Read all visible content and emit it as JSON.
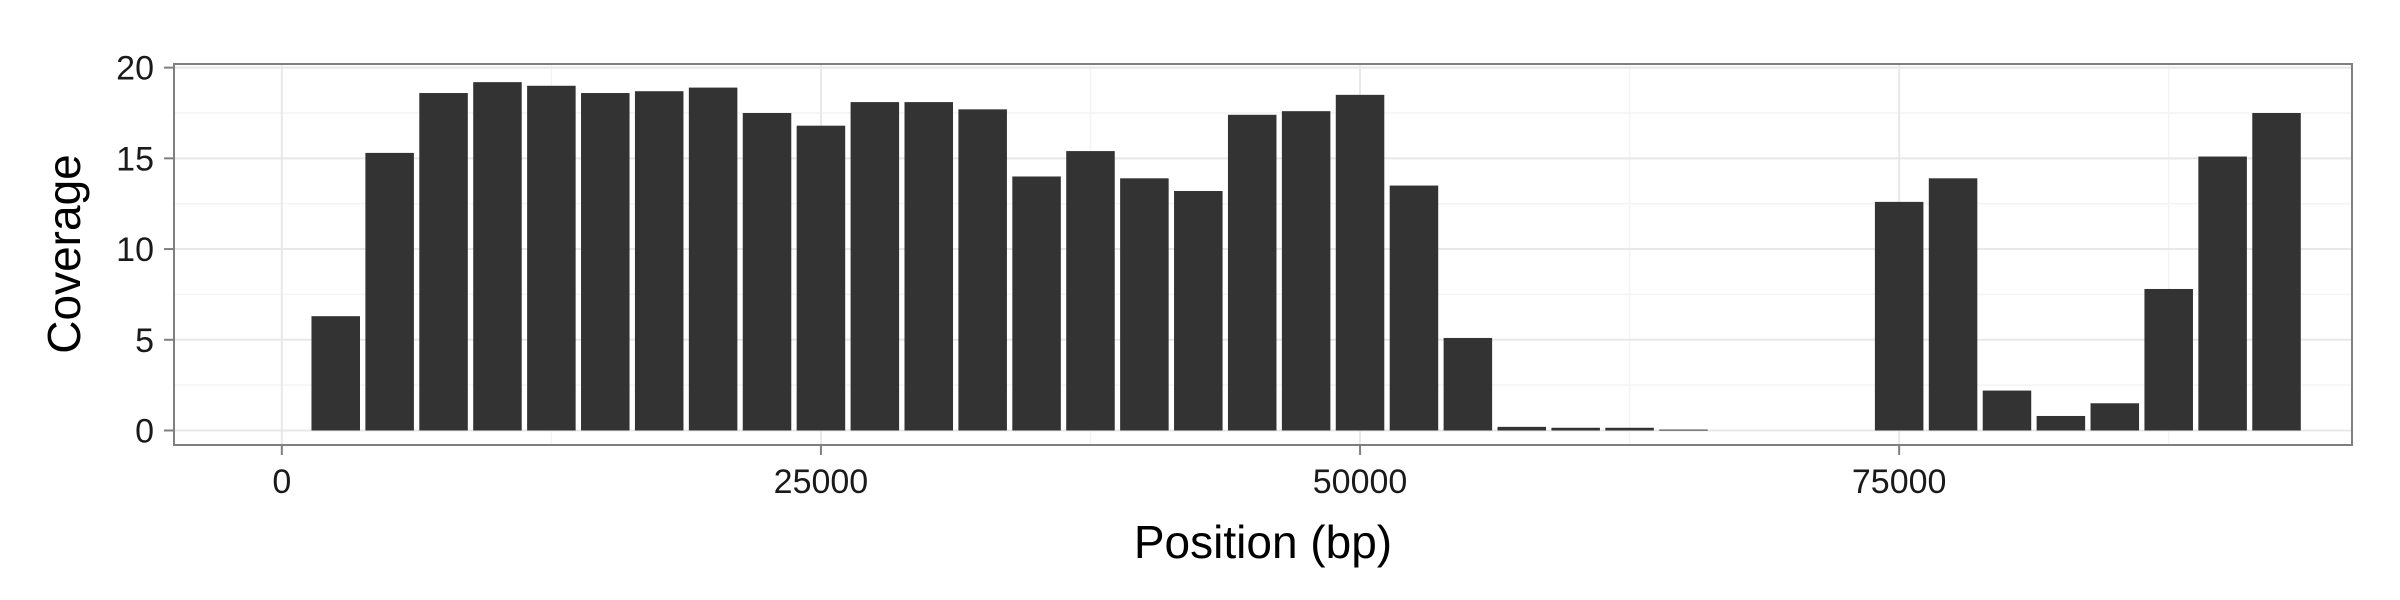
{
  "chart_data": {
    "type": "bar",
    "title": "",
    "xlabel": "Position (bp)",
    "ylabel": "Coverage",
    "xlim": [
      -5000,
      96000
    ],
    "ylim": [
      -0.8,
      20.2
    ],
    "x_ticks": [
      0,
      25000,
      50000,
      75000
    ],
    "x_tick_labels": [
      "0",
      "25000",
      "50000",
      "75000"
    ],
    "y_ticks": [
      0,
      5,
      10,
      15,
      20
    ],
    "y_tick_labels": [
      "0",
      "5",
      "10",
      "15",
      "20"
    ],
    "grid": true,
    "bin_width": 2500,
    "bar_color": "#333333",
    "x": [
      2500,
      5000,
      7500,
      10000,
      12500,
      15000,
      17500,
      20000,
      22500,
      25000,
      27500,
      30000,
      32500,
      35000,
      37500,
      40000,
      42500,
      45000,
      47500,
      50000,
      52500,
      55000,
      57500,
      60000,
      62500,
      65000,
      75000,
      77500,
      80000,
      82500,
      85000,
      87500,
      90000,
      92500
    ],
    "values": [
      6.3,
      15.3,
      18.6,
      19.2,
      19.0,
      18.6,
      18.7,
      18.9,
      17.5,
      16.8,
      18.1,
      18.1,
      17.7,
      14.0,
      15.4,
      13.9,
      13.2,
      17.4,
      17.6,
      18.5,
      13.5,
      5.1,
      0.2,
      0.15,
      0.15,
      0.05,
      12.6,
      13.9,
      2.2,
      0.8,
      1.5,
      7.8,
      15.1,
      17.5
    ]
  }
}
